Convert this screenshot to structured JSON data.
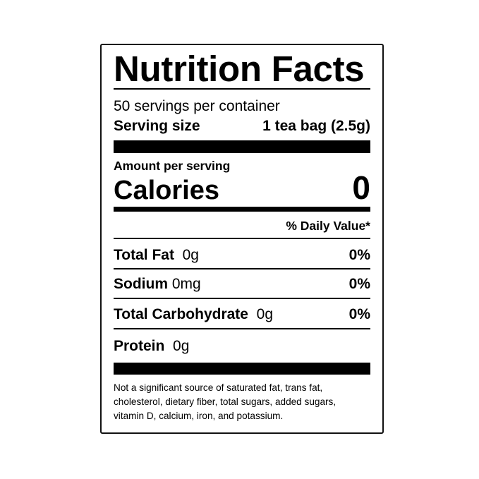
{
  "label": {
    "title": "Nutrition Facts",
    "servings_per_container": "50 servings per container",
    "serving_size_label": "Serving size",
    "serving_size_value": "1 tea bag (2.5g)",
    "amount_per_serving": "Amount per serving",
    "calories_label": "Calories",
    "calories_value": "0",
    "daily_value_header": "% Daily Value*",
    "nutrients": [
      {
        "name": "Total Fat",
        "amount": "0g",
        "dv": "0%"
      },
      {
        "name": "Sodium",
        "amount": "0mg",
        "dv": "0%"
      },
      {
        "name": "Total Carbohydrate",
        "amount": "0g",
        "dv": "0%"
      },
      {
        "name": "Protein",
        "amount": "0g",
        "dv": ""
      }
    ],
    "footnote": [
      "Not a significant source of saturated fat, trans fat,",
      "cholesterol, dietary fiber, total sugars, added sugars,",
      "vitamin D, calcium, iron, and potassium."
    ]
  }
}
